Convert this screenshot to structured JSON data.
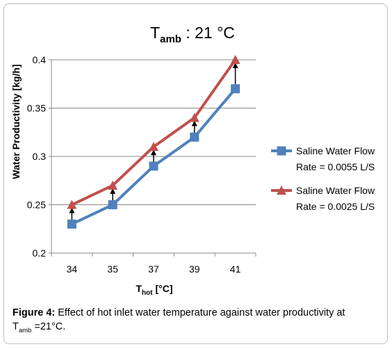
{
  "chart_data": {
    "type": "line",
    "title": {
      "main": "T",
      "sub": "amb",
      "rest": " : 21 °C"
    },
    "xlabel": {
      "main": "T",
      "sub": "hot",
      "rest": " [°C]"
    },
    "ylabel": "Water Productivity [kg/h]",
    "categories": [
      "34",
      "35",
      "37",
      "39",
      "41"
    ],
    "ylim": [
      0.2,
      0.4
    ],
    "yticks": [
      "0.2",
      "0.25",
      "0.3",
      "0.35",
      "0.4"
    ],
    "grid": true,
    "legend_position": "right",
    "series": [
      {
        "name": "Saline Water Flow Rate = 0.0055 L/S",
        "name_line1": "Saline Water Flow",
        "name_line2": "Rate = 0.0055 L/S",
        "marker": "square",
        "color": "#4F81BD",
        "values": [
          0.23,
          0.25,
          0.29,
          0.32,
          0.37
        ]
      },
      {
        "name": "Saline Water Flow Rate = 0.0025 L/S",
        "name_line1": "Saline Water Flow",
        "name_line2": "Rate = 0.0025 L/S",
        "marker": "triangle",
        "color": "#C0504D",
        "values": [
          0.25,
          0.27,
          0.31,
          0.34,
          0.4
        ]
      }
    ],
    "annotation": "vertical arrows from lower series to upper series at each category"
  },
  "caption": {
    "label": "Figure 4:",
    "text_line1": " Effect of hot inlet water temperature against water productivity at",
    "t": "T",
    "sub": "amb",
    "text_end": " =21°C."
  }
}
